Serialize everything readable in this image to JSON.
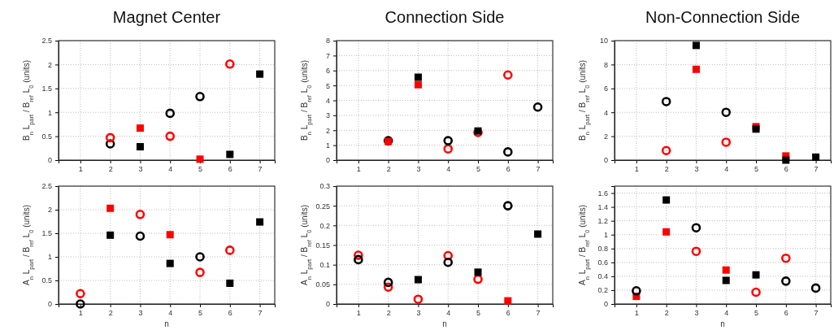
{
  "chart_data": [
    {
      "type": "scatter",
      "title": "Magnet Center",
      "ylabel": "B$_{n}$ L$_{part}$ / B$_{ref}$ L$_{0}$ (units)",
      "xlim": [
        0.27,
        7.5
      ],
      "xticks": [
        1,
        2,
        3,
        4,
        5,
        6,
        7
      ],
      "ylim": [
        0,
        2.5
      ],
      "yticks": [
        0,
        0.5,
        1,
        1.5,
        2,
        2.5
      ],
      "grid": true,
      "series": [
        {
          "color": "#000000",
          "marker": "circle",
          "x": [
            2,
            4,
            5
          ],
          "values": [
            0.34,
            0.98,
            1.33
          ]
        },
        {
          "color": "#ff0000",
          "marker": "circle",
          "x": [
            2,
            4,
            6
          ],
          "values": [
            0.47,
            0.5,
            2.01
          ]
        },
        {
          "color": "#000000",
          "marker": "square",
          "x": [
            3,
            6,
            7
          ],
          "values": [
            0.28,
            0.12,
            1.8
          ]
        },
        {
          "color": "#ff0000",
          "marker": "square",
          "x": [
            3,
            5
          ],
          "values": [
            0.67,
            0.02
          ]
        }
      ]
    },
    {
      "type": "scatter",
      "title": "Connection Side",
      "ylabel": "B$_{n}$ L$_{part}$ / B$_{ref}$ L$_{0}$ (units)",
      "xlim": [
        0.27,
        7.5
      ],
      "xticks": [
        1,
        2,
        3,
        4,
        5,
        6,
        7
      ],
      "ylim": [
        0,
        8
      ],
      "yticks": [
        0,
        1,
        2,
        3,
        4,
        5,
        6,
        7,
        8
      ],
      "grid": true,
      "series": [
        {
          "color": "#ff0000",
          "marker": "circle",
          "x": [
            4,
            5,
            6
          ],
          "values": [
            0.75,
            1.85,
            5.7
          ]
        },
        {
          "color": "#000000",
          "marker": "circle",
          "x": [
            2,
            4,
            6,
            7
          ],
          "values": [
            1.3,
            1.3,
            0.55,
            3.55
          ]
        },
        {
          "color": "#000000",
          "marker": "square",
          "x": [
            3,
            5
          ],
          "values": [
            5.55,
            1.95
          ]
        },
        {
          "color": "#ff0000",
          "marker": "square",
          "x": [
            2,
            3
          ],
          "values": [
            1.25,
            5.05
          ]
        }
      ]
    },
    {
      "type": "scatter",
      "title": "Non-Connection Side",
      "ylabel": "B$_{n}$ L$_{part}$ / B$_{ref}$ L$_{0}$ (units)",
      "xlim": [
        0.27,
        7.5
      ],
      "xticks": [
        1,
        2,
        3,
        4,
        5,
        6,
        7
      ],
      "ylim": [
        0,
        10
      ],
      "yticks": [
        0,
        2,
        4,
        6,
        8,
        10
      ],
      "grid": true,
      "series": [
        {
          "color": "#000000",
          "marker": "circle",
          "x": [
            2,
            4
          ],
          "values": [
            4.9,
            4.0
          ]
        },
        {
          "color": "#ff0000",
          "marker": "circle",
          "x": [
            2,
            4
          ],
          "values": [
            0.8,
            1.5
          ]
        },
        {
          "color": "#ff0000",
          "marker": "square",
          "x": [
            3,
            5,
            6
          ],
          "values": [
            7.6,
            2.8,
            0.35
          ]
        },
        {
          "color": "#000000",
          "marker": "square",
          "x": [
            3,
            5,
            6,
            7
          ],
          "values": [
            9.6,
            2.6,
            0,
            0.25
          ]
        }
      ]
    },
    {
      "type": "scatter",
      "xlabel": "n",
      "ylabel": "A$_{n}$ L$_{part}$ / B$_{ref}$ L$_{0}$ (units)",
      "xlim": [
        0.27,
        7.5
      ],
      "xticks": [
        1,
        2,
        3,
        4,
        5,
        6,
        7
      ],
      "ylim": [
        0,
        2.5
      ],
      "yticks": [
        0,
        0.5,
        1,
        1.5,
        2,
        2.5
      ],
      "grid": true,
      "series": [
        {
          "color": "#000000",
          "marker": "circle",
          "x": [
            1,
            3,
            5
          ],
          "values": [
            0,
            1.44,
            1.0
          ]
        },
        {
          "color": "#ff0000",
          "marker": "circle",
          "x": [
            1,
            3,
            5,
            6
          ],
          "values": [
            0.22,
            1.9,
            0.67,
            1.14
          ]
        },
        {
          "color": "#000000",
          "marker": "square",
          "x": [
            2,
            4,
            6,
            7
          ],
          "values": [
            1.46,
            0.86,
            0.44,
            1.74
          ]
        },
        {
          "color": "#ff0000",
          "marker": "square",
          "x": [
            2,
            4
          ],
          "values": [
            2.03,
            1.47
          ]
        }
      ]
    },
    {
      "type": "scatter",
      "xlabel": "n",
      "ylabel": "A$_{n}$ L$_{part}$ / B$_{ref}$ L$_{0}$ (units)",
      "xlim": [
        0.27,
        7.5
      ],
      "xticks": [
        1,
        2,
        3,
        4,
        5,
        6,
        7
      ],
      "ylim": [
        0,
        0.3
      ],
      "yticks": [
        0,
        0.05,
        0.1,
        0.15,
        0.2,
        0.25,
        0.3
      ],
      "grid": true,
      "series": [
        {
          "color": "#ff0000",
          "marker": "circle",
          "x": [
            1,
            2,
            3,
            4,
            5
          ],
          "values": [
            0.124,
            0.043,
            0.012,
            0.123,
            0.063
          ]
        },
        {
          "color": "#000000",
          "marker": "circle",
          "x": [
            1,
            2,
            4,
            6
          ],
          "values": [
            0.113,
            0.055,
            0.106,
            0.25
          ]
        },
        {
          "color": "#000000",
          "marker": "square",
          "x": [
            3,
            5,
            7
          ],
          "values": [
            0.062,
            0.081,
            0.178
          ]
        },
        {
          "color": "#ff0000",
          "marker": "square",
          "x": [
            6
          ],
          "values": [
            0.008
          ]
        }
      ]
    },
    {
      "type": "scatter",
      "xlabel": "n",
      "ylabel": "A$_{n}$ L$_{part}$ / B$_{ref}$ L$_{0}$ (units)",
      "xlim": [
        0.27,
        7.5
      ],
      "xticks": [
        1,
        2,
        3,
        4,
        5,
        6,
        7
      ],
      "ylim": [
        0,
        1.7
      ],
      "yticks": [
        0,
        0.2,
        0.4,
        0.6,
        0.8,
        1,
        1.2,
        1.4,
        1.6
      ],
      "grid": true,
      "series": [
        {
          "color": "#ff0000",
          "marker": "square",
          "x": [
            1,
            2,
            4
          ],
          "values": [
            0.11,
            1.04,
            0.49
          ]
        },
        {
          "color": "#000000",
          "marker": "circle",
          "x": [
            1,
            3,
            6,
            7
          ],
          "values": [
            0.19,
            1.1,
            0.33,
            0.23
          ]
        },
        {
          "color": "#ff0000",
          "marker": "circle",
          "x": [
            3,
            5,
            6
          ],
          "values": [
            0.76,
            0.17,
            0.66
          ]
        },
        {
          "color": "#000000",
          "marker": "square",
          "x": [
            2,
            4,
            5
          ],
          "values": [
            1.5,
            0.34,
            0.42
          ]
        }
      ]
    }
  ]
}
